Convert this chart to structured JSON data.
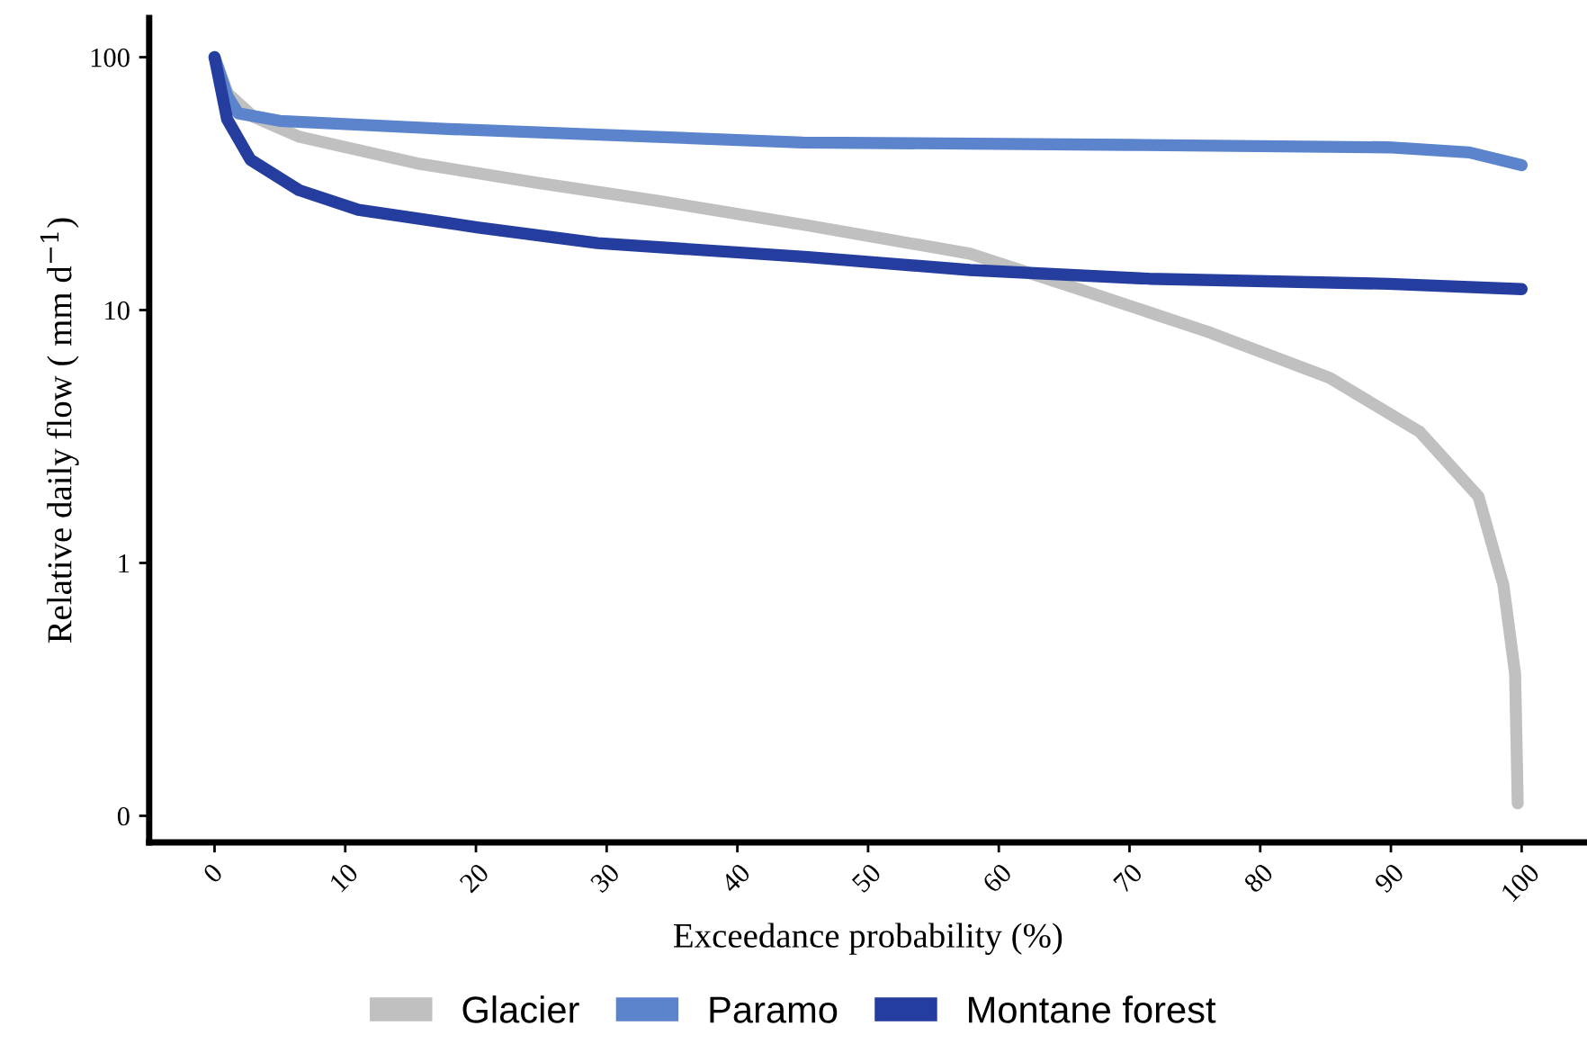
{
  "chart_data": {
    "type": "line",
    "xlabel": "Exceedance probability (%)",
    "ylabel": "Relative daily flow ( mm d$^{−1}$)",
    "log": "y",
    "xlim": [
      -5,
      105
    ],
    "xticks": [
      0,
      10,
      20,
      30,
      40,
      50,
      60,
      70,
      80,
      90,
      100
    ],
    "ylim": [
      0.0785,
      143
    ],
    "yticks": [
      {
        "value": 0.1,
        "label": "0"
      },
      1,
      10,
      100
    ],
    "grid": false,
    "legend": "bottom",
    "marker": "none",
    "line_style": "solid",
    "series": [
      {
        "name": "Glacier",
        "color": "#c0c0c0",
        "x": [
          0,
          1,
          3,
          6.5,
          15.5,
          24.8,
          34,
          45.4,
          57.8,
          67,
          76,
          85.3,
          92.2,
          96.7,
          98.6,
          99.5,
          99.7
        ],
        "values": [
          100,
          72,
          58,
          48.4,
          38,
          31.8,
          27,
          21.6,
          16.7,
          11.7,
          8.2,
          5.4,
          3.3,
          1.83,
          0.82,
          0.364,
          0.112
        ]
      },
      {
        "name": "Paramo",
        "color": "#5b84cc",
        "x": [
          0,
          1,
          1.8,
          5,
          17.9,
          45,
          70,
          89.8,
          96,
          100
        ],
        "values": [
          100,
          70,
          60,
          56,
          52,
          46,
          45,
          44,
          42,
          37.4
        ]
      },
      {
        "name": "Montane forest",
        "color": "#253d9e",
        "x": [
          0,
          0.96,
          2.75,
          6.46,
          11,
          20.2,
          29.3,
          45.4,
          57.8,
          71.5,
          89.8,
          100
        ],
        "values": [
          100,
          56.9,
          39.3,
          29.8,
          24.9,
          21.2,
          18.4,
          16.2,
          14.4,
          13.3,
          12.7,
          12.1
        ]
      }
    ]
  }
}
